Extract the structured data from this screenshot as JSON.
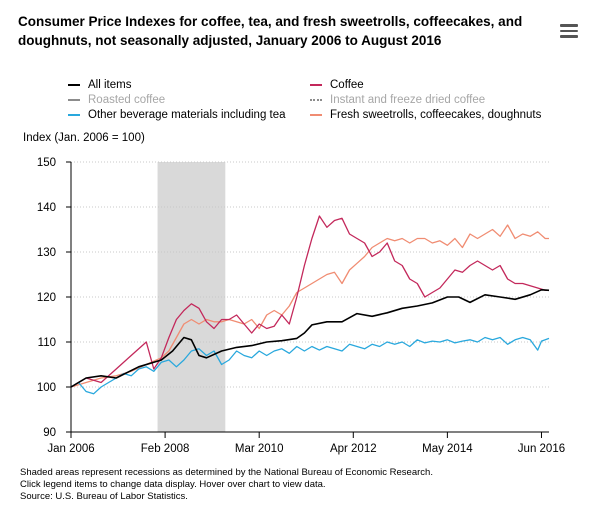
{
  "title": "Consumer Price Indexes for coffee, tea, and fresh sweetrolls, coffeecakes, and doughnuts, not seasonally adjusted, January 2006 to August 2016",
  "menu_icon": "hamburger-menu-icon",
  "notes": [
    "Shaded areas represent recessions as determined by the National Bureau of Economic Research.",
    "Click legend items to change data display. Hover over chart to view data.",
    "Source: U.S. Bureau of Labor Statistics."
  ],
  "chart_data": {
    "type": "line",
    "title": "Consumer Price Indexes for coffee, tea, and fresh sweetrolls, coffeecakes, and doughnuts, not seasonally adjusted, January 2006 to August 2016",
    "xlabel": "",
    "ylabel": "Index (Jan. 2006 = 100)",
    "ylim": [
      90,
      150
    ],
    "yticks": [
      90,
      100,
      110,
      120,
      130,
      140,
      150
    ],
    "x_start": "2006-01",
    "x_end": "2016-08",
    "x_ticks": [
      {
        "label": "Jan 2006",
        "month_index": 0
      },
      {
        "label": "Feb 2008",
        "month_index": 25
      },
      {
        "label": "Mar 2010",
        "month_index": 50
      },
      {
        "label": "Apr 2012",
        "month_index": 75
      },
      {
        "label": "May 2014",
        "month_index": 100
      },
      {
        "label": "Jun 2016",
        "month_index": 125
      }
    ],
    "recession": {
      "start": "2007-12",
      "end": "2009-06",
      "start_index": 23,
      "end_index": 41
    },
    "grid": true,
    "series": [
      {
        "name": "All items",
        "color": "#000000",
        "style": "solid",
        "visible": true,
        "points": [
          [
            0,
            100
          ],
          [
            4,
            102
          ],
          [
            8,
            102.5
          ],
          [
            12,
            102
          ],
          [
            18,
            104.5
          ],
          [
            24,
            106
          ],
          [
            27,
            108
          ],
          [
            30,
            111
          ],
          [
            32,
            110.5
          ],
          [
            34,
            107
          ],
          [
            36,
            106.5
          ],
          [
            40,
            108
          ],
          [
            44,
            108.8
          ],
          [
            48,
            109.2
          ],
          [
            52,
            110
          ],
          [
            56,
            110.3
          ],
          [
            60,
            110.8
          ],
          [
            62,
            112
          ],
          [
            64,
            113.8
          ],
          [
            68,
            114.5
          ],
          [
            72,
            114.5
          ],
          [
            76,
            116.3
          ],
          [
            80,
            115.7
          ],
          [
            84,
            116.5
          ],
          [
            88,
            117.5
          ],
          [
            92,
            118
          ],
          [
            96,
            118.7
          ],
          [
            100,
            120
          ],
          [
            103,
            120
          ],
          [
            106,
            118.8
          ],
          [
            110,
            120.5
          ],
          [
            114,
            120
          ],
          [
            118,
            119.5
          ],
          [
            122,
            120.5
          ],
          [
            125,
            121.6
          ],
          [
            127,
            121.5
          ]
        ]
      },
      {
        "name": "Coffee",
        "color": "#c3285b",
        "style": "solid",
        "visible": true,
        "points": [
          [
            0,
            100
          ],
          [
            4,
            102
          ],
          [
            8,
            101
          ],
          [
            12,
            104
          ],
          [
            16,
            107
          ],
          [
            20,
            110
          ],
          [
            22,
            104
          ],
          [
            24,
            106.5
          ],
          [
            26,
            111
          ],
          [
            28,
            115
          ],
          [
            30,
            117
          ],
          [
            32,
            118.5
          ],
          [
            34,
            117.5
          ],
          [
            36,
            114.5
          ],
          [
            38,
            113
          ],
          [
            40,
            115
          ],
          [
            42,
            115
          ],
          [
            44,
            116
          ],
          [
            46,
            114
          ],
          [
            48,
            112
          ],
          [
            50,
            114
          ],
          [
            52,
            113
          ],
          [
            54,
            113.5
          ],
          [
            56,
            116
          ],
          [
            58,
            114
          ],
          [
            60,
            120
          ],
          [
            62,
            127
          ],
          [
            64,
            133
          ],
          [
            66,
            138
          ],
          [
            68,
            135.5
          ],
          [
            70,
            137
          ],
          [
            72,
            137.5
          ],
          [
            74,
            134
          ],
          [
            76,
            133
          ],
          [
            78,
            132
          ],
          [
            80,
            129
          ],
          [
            82,
            130
          ],
          [
            84,
            132
          ],
          [
            86,
            128
          ],
          [
            88,
            127
          ],
          [
            90,
            124
          ],
          [
            92,
            123
          ],
          [
            94,
            120
          ],
          [
            96,
            121
          ],
          [
            98,
            122
          ],
          [
            100,
            124
          ],
          [
            102,
            126
          ],
          [
            104,
            125.5
          ],
          [
            106,
            127
          ],
          [
            108,
            128
          ],
          [
            110,
            127
          ],
          [
            112,
            126
          ],
          [
            114,
            127
          ],
          [
            116,
            124
          ],
          [
            118,
            123
          ],
          [
            120,
            123
          ],
          [
            122,
            122.5
          ],
          [
            124,
            122
          ],
          [
            126,
            121.5
          ],
          [
            127,
            121.5
          ]
        ]
      },
      {
        "name": "Roasted coffee",
        "color": "#8c8c8c",
        "style": "dashed",
        "visible": false,
        "points": []
      },
      {
        "name": "Instant and freeze dried coffee",
        "color": "#8c8c8c",
        "style": "dotted",
        "visible": false,
        "points": []
      },
      {
        "name": "Other beverage materials including tea",
        "color": "#29a8dd",
        "style": "solid",
        "visible": true,
        "points": [
          [
            0,
            100
          ],
          [
            2,
            101
          ],
          [
            4,
            99
          ],
          [
            6,
            98.5
          ],
          [
            8,
            100
          ],
          [
            10,
            101
          ],
          [
            12,
            102
          ],
          [
            14,
            103
          ],
          [
            16,
            102.5
          ],
          [
            18,
            104
          ],
          [
            20,
            104.5
          ],
          [
            22,
            103.5
          ],
          [
            24,
            105.5
          ],
          [
            26,
            106
          ],
          [
            28,
            104.5
          ],
          [
            30,
            106
          ],
          [
            32,
            108
          ],
          [
            34,
            108.5
          ],
          [
            36,
            107
          ],
          [
            38,
            108
          ],
          [
            40,
            105
          ],
          [
            42,
            106
          ],
          [
            44,
            108
          ],
          [
            46,
            107
          ],
          [
            48,
            106.5
          ],
          [
            50,
            108
          ],
          [
            52,
            107
          ],
          [
            54,
            108
          ],
          [
            56,
            108.5
          ],
          [
            58,
            107.5
          ],
          [
            60,
            109
          ],
          [
            62,
            108
          ],
          [
            64,
            109
          ],
          [
            66,
            108.2
          ],
          [
            68,
            109
          ],
          [
            70,
            108.5
          ],
          [
            72,
            108
          ],
          [
            74,
            109.5
          ],
          [
            76,
            109
          ],
          [
            78,
            108.5
          ],
          [
            80,
            109.5
          ],
          [
            82,
            109
          ],
          [
            84,
            110
          ],
          [
            86,
            109.5
          ],
          [
            88,
            110
          ],
          [
            90,
            109
          ],
          [
            92,
            110.5
          ],
          [
            94,
            109.8
          ],
          [
            96,
            110.2
          ],
          [
            98,
            110
          ],
          [
            100,
            110.5
          ],
          [
            102,
            109.8
          ],
          [
            104,
            110.2
          ],
          [
            106,
            110.5
          ],
          [
            108,
            110
          ],
          [
            110,
            111
          ],
          [
            112,
            110.5
          ],
          [
            114,
            111
          ],
          [
            116,
            109.5
          ],
          [
            118,
            110.5
          ],
          [
            120,
            111
          ],
          [
            122,
            110.5
          ],
          [
            124,
            108.2
          ],
          [
            125,
            110.2
          ],
          [
            127,
            110.8
          ]
        ]
      },
      {
        "name": "Fresh sweetrolls, coffeecakes, doughnuts",
        "color": "#f08c72",
        "style": "solid",
        "visible": true,
        "points": [
          [
            0,
            100
          ],
          [
            4,
            101
          ],
          [
            8,
            102
          ],
          [
            12,
            102.5
          ],
          [
            16,
            103.5
          ],
          [
            20,
            105
          ],
          [
            24,
            106.5
          ],
          [
            26,
            108
          ],
          [
            28,
            111
          ],
          [
            30,
            114
          ],
          [
            32,
            115
          ],
          [
            34,
            114
          ],
          [
            36,
            115
          ],
          [
            38,
            114.5
          ],
          [
            40,
            114.5
          ],
          [
            42,
            115
          ],
          [
            44,
            114.5
          ],
          [
            46,
            114
          ],
          [
            48,
            115
          ],
          [
            50,
            113
          ],
          [
            52,
            116
          ],
          [
            54,
            117
          ],
          [
            56,
            116
          ],
          [
            58,
            118
          ],
          [
            60,
            121
          ],
          [
            62,
            122
          ],
          [
            64,
            123
          ],
          [
            66,
            124
          ],
          [
            68,
            125
          ],
          [
            70,
            125.5
          ],
          [
            72,
            123
          ],
          [
            74,
            126
          ],
          [
            76,
            127.5
          ],
          [
            78,
            129
          ],
          [
            80,
            131
          ],
          [
            82,
            132
          ],
          [
            84,
            133
          ],
          [
            86,
            132.5
          ],
          [
            88,
            133
          ],
          [
            90,
            132
          ],
          [
            92,
            133
          ],
          [
            94,
            133
          ],
          [
            96,
            132
          ],
          [
            98,
            132.5
          ],
          [
            100,
            131.5
          ],
          [
            102,
            133
          ],
          [
            104,
            131
          ],
          [
            106,
            134
          ],
          [
            108,
            133
          ],
          [
            110,
            134
          ],
          [
            112,
            135
          ],
          [
            114,
            133.5
          ],
          [
            116,
            136
          ],
          [
            118,
            133
          ],
          [
            120,
            134
          ],
          [
            122,
            133.5
          ],
          [
            124,
            134.5
          ],
          [
            126,
            133
          ],
          [
            127,
            133
          ]
        ]
      }
    ]
  }
}
